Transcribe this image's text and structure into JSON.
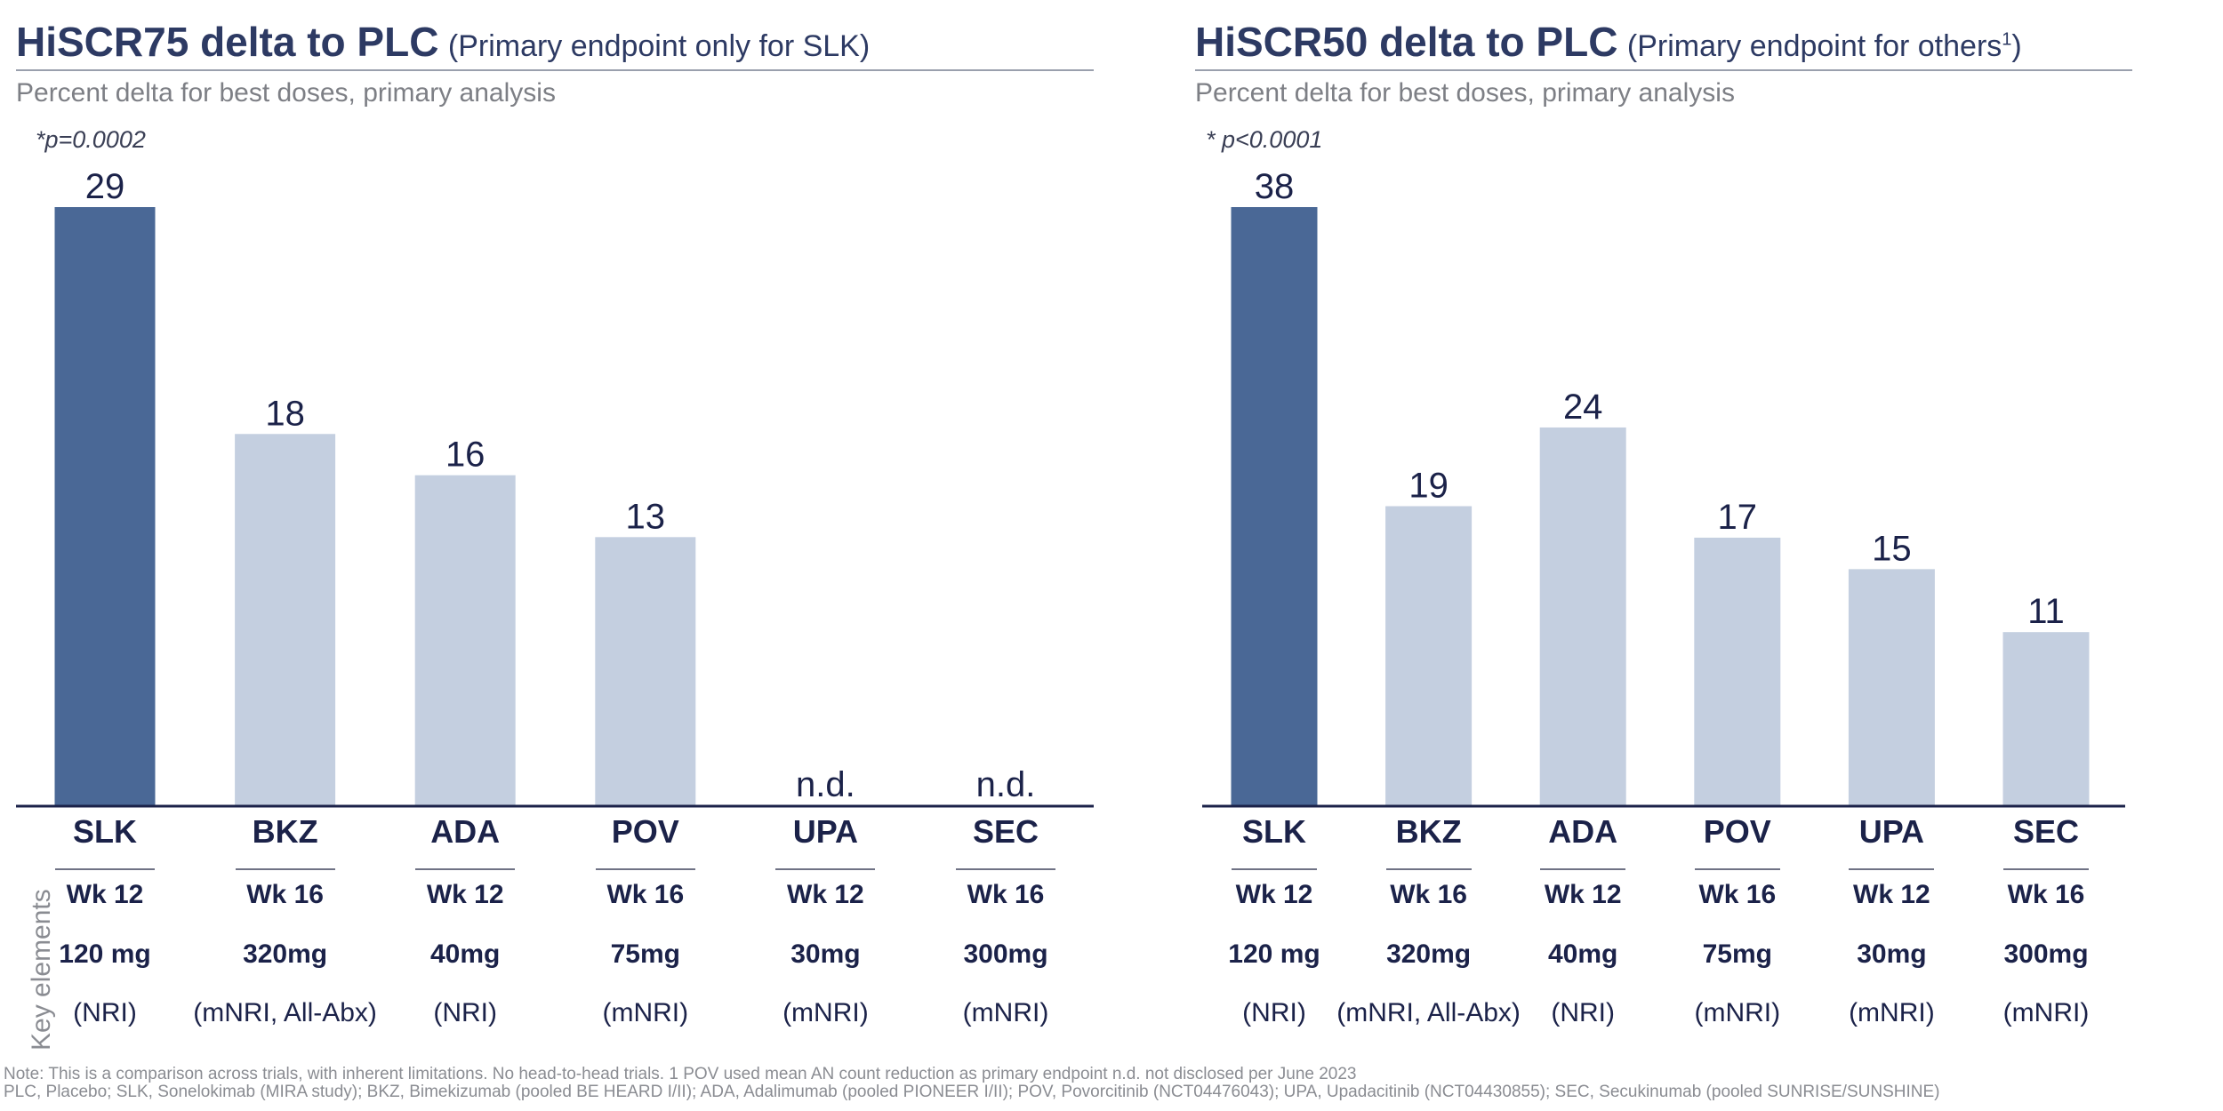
{
  "key_label": "Key elements",
  "footnotes": {
    "line1": "Note: This is a comparison across trials, with inherent limitations. No head-to-head trials. 1 POV used mean AN count reduction as primary endpoint     n.d. not disclosed per June 2023",
    "line2": "PLC, Placebo; SLK, Sonelokimab (MIRA study); BKZ, Bimekizumab (pooled BE HEARD I/II); ADA, Adalimumab (pooled PIONEER I/II); POV, Povorcitinib (NCT04476043); UPA, Upadacitinib (NCT04430855); SEC, Secukinumab (pooled SUNRISE/SUNSHINE)"
  },
  "colors": {
    "highlight": "#4a6896",
    "other": "#c4cfe0",
    "text": "#1b2249"
  },
  "chart_data": [
    {
      "type": "bar",
      "title": "HiSCR75 delta to PLC",
      "title_note": "(Primary endpoint only for SLK)",
      "subtitle": "Percent delta for best doses, primary analysis",
      "annotation": "*p=0.0002",
      "categories": [
        "SLK",
        "BKZ",
        "ADA",
        "POV",
        "UPA",
        "SEC"
      ],
      "values": [
        29,
        18,
        16,
        13,
        null,
        null
      ],
      "labels": [
        "29",
        "18",
        "16",
        "13",
        "n.d.",
        "n.d."
      ],
      "highlight": [
        true,
        false,
        false,
        false,
        false,
        false
      ],
      "weeks": [
        "Wk 12",
        "Wk 16",
        "Wk 12",
        "Wk 16",
        "Wk 12",
        "Wk 16"
      ],
      "doses": [
        "120 mg",
        "320mg",
        "40mg",
        "75mg",
        "30mg",
        "300mg"
      ],
      "methods": [
        "(NRI)",
        "(mNRI, All-Abx)",
        "(NRI)",
        "(mNRI)",
        "(mNRI)",
        "(mNRI)"
      ],
      "ylim": [
        0,
        29
      ],
      "xlabel": "",
      "ylabel": ""
    },
    {
      "type": "bar",
      "title": "HiSCR50 delta to PLC",
      "title_note": "(Primary endpoint for others",
      "title_note_sup": "1",
      "title_note_end": ")",
      "subtitle": "Percent delta for best doses, primary analysis",
      "annotation": "* p<0.0001",
      "categories": [
        "SLK",
        "BKZ",
        "ADA",
        "POV",
        "UPA",
        "SEC"
      ],
      "values": [
        38,
        19,
        24,
        17,
        15,
        11
      ],
      "labels": [
        "38",
        "19",
        "24",
        "17",
        "15",
        "11"
      ],
      "highlight": [
        true,
        false,
        false,
        false,
        false,
        false
      ],
      "weeks": [
        "Wk 12",
        "Wk 16",
        "Wk 12",
        "Wk 16",
        "Wk 12",
        "Wk 16"
      ],
      "doses": [
        "120 mg",
        "320mg",
        "40mg",
        "75mg",
        "30mg",
        "300mg"
      ],
      "methods": [
        "(NRI)",
        "(mNRI, All-Abx)",
        "(NRI)",
        "(mNRI)",
        "(mNRI)",
        "(mNRI)"
      ],
      "ylim": [
        0,
        38
      ],
      "xlabel": "",
      "ylabel": ""
    }
  ]
}
